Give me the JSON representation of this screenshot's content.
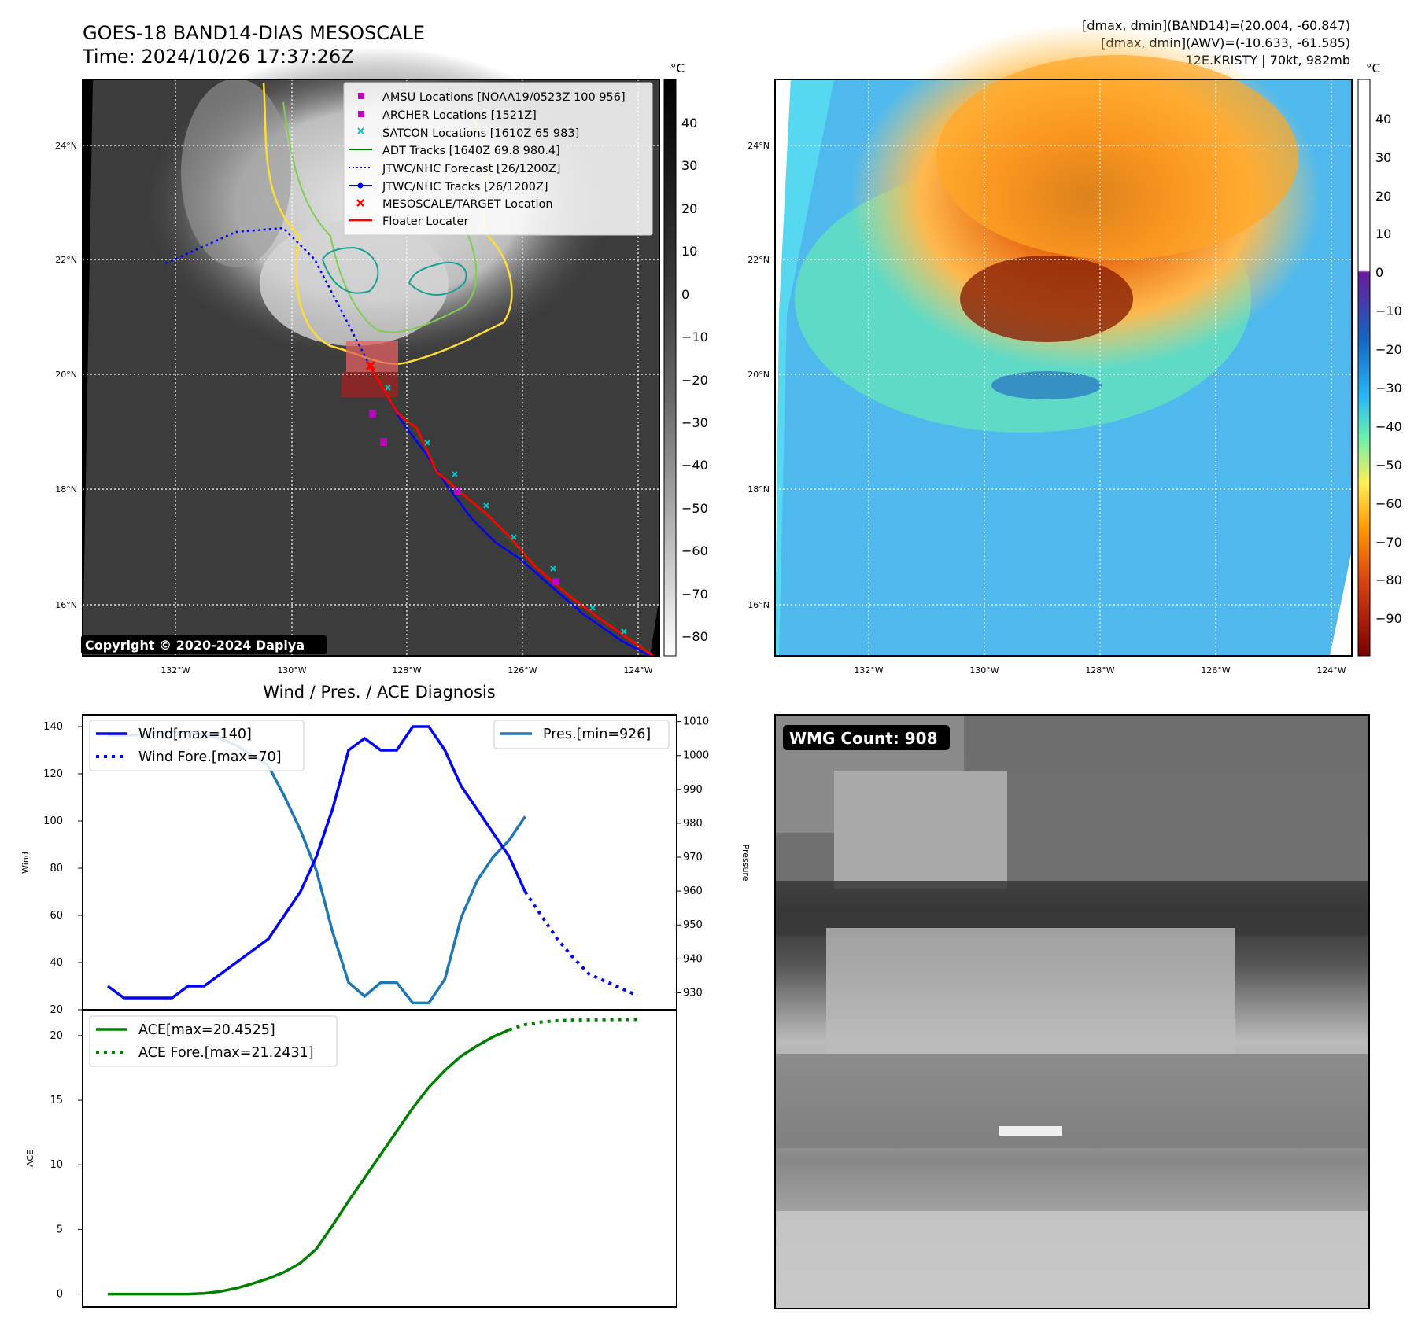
{
  "header": {
    "title": "GOES-18 BAND14-DIAS MESOSCALE",
    "time": "Time: 2024/10/26 17:37:26Z",
    "stats_line1": "[dmax, dmin](BAND14)=(20.004, -60.847)",
    "stats_line2": "[dmax, dmin](AWV)=(-10.633, -61.585)",
    "storm_line": "12E.KRISTY | 70kt, 982mb"
  },
  "map": {
    "lat_labels": [
      "24°N",
      "22°N",
      "20°N",
      "18°N",
      "16°N"
    ],
    "lon_labels": [
      "132°W",
      "130°W",
      "128°W",
      "126°W",
      "124°W"
    ],
    "copyright": "Copyright © 2020-2024 Dapiya",
    "unit": "°C"
  },
  "legend": {
    "items": [
      {
        "label": "AMSU Locations [NOAA19/0523Z 100 956]",
        "marker": "square",
        "color": "#c000c0"
      },
      {
        "label": "ARCHER Locations [1521Z]",
        "marker": "square",
        "color": "#c000c0"
      },
      {
        "label": "SATCON Locations [1610Z 65 983]",
        "marker": "x",
        "color": "#00c8c8"
      },
      {
        "label": "ADT Tracks [1640Z 69.8 980.4]",
        "marker": "line",
        "color": "#008000"
      },
      {
        "label": "JTWC/NHC Forecast [26/1200Z]",
        "marker": "dotted",
        "color": "#0000ff"
      },
      {
        "label": "JTWC/NHC Tracks [26/1200Z]",
        "marker": "line-dot",
        "color": "#0000ff"
      },
      {
        "label": "MESOSCALE/TARGET Location",
        "marker": "x",
        "color": "#ff0000"
      },
      {
        "label": "Floater Locater",
        "marker": "line",
        "color": "#ff0000"
      }
    ]
  },
  "colorbar_left": {
    "unit": "°C",
    "ticks": [
      "40",
      "30",
      "20",
      "10",
      "0",
      "−10",
      "−20",
      "−30",
      "−40",
      "−50",
      "−60",
      "−70",
      "−80"
    ]
  },
  "colorbar_right": {
    "unit": "°C",
    "ticks": [
      "40",
      "30",
      "20",
      "10",
      "0",
      "−10",
      "−20",
      "−30",
      "−40",
      "−50",
      "−60",
      "−70",
      "−80",
      "−90"
    ]
  },
  "wmg": {
    "label": "WMG Count: 908"
  },
  "chart_data": [
    {
      "type": "line",
      "title": "Wind / Pres. / ACE Diagnosis",
      "xlabel": "",
      "ylabel": "Wind",
      "y2label": "Pressure",
      "ylim": [
        20,
        145
      ],
      "y2lim": [
        925,
        1012
      ],
      "yticks": [
        "20",
        "40",
        "60",
        "80",
        "100",
        "120",
        "140"
      ],
      "y2ticks": [
        "930",
        "940",
        "950",
        "960",
        "970",
        "980",
        "990",
        "1000",
        "1010"
      ],
      "series": [
        {
          "name": "Wind[max=140]",
          "color": "#0000ff",
          "style": "solid",
          "values": [
            30,
            25,
            25,
            25,
            25,
            30,
            30,
            35,
            40,
            45,
            50,
            60,
            70,
            85,
            105,
            130,
            135,
            130,
            130,
            140,
            140,
            130,
            115,
            105,
            95,
            85,
            70
          ]
        },
        {
          "name": "Wind Fore.[max=70]",
          "color": "#0000ff",
          "style": "dotted",
          "x_start": 26,
          "values": [
            70,
            60,
            50,
            42,
            35,
            32,
            29,
            26
          ]
        },
        {
          "name": "Pres.[min=926]",
          "color": "#1f77b4",
          "style": "solid",
          "values": [
            1006,
            1006,
            1006,
            1007,
            1007,
            1007,
            1006,
            1005,
            1003,
            1000,
            997,
            988,
            978,
            966,
            948,
            933,
            929,
            933,
            933,
            927,
            927,
            934,
            952,
            963,
            970,
            975,
            982
          ]
        }
      ]
    },
    {
      "type": "line",
      "ylabel": "ACE",
      "ylim": [
        -1,
        22
      ],
      "yticks": [
        "0",
        "5",
        "10",
        "15",
        "20"
      ],
      "series": [
        {
          "name": "ACE[max=20.4525]",
          "color": "#008000",
          "style": "solid",
          "values": [
            0,
            0,
            0,
            0,
            0,
            0,
            0.05,
            0.2,
            0.45,
            0.8,
            1.2,
            1.7,
            2.4,
            3.5,
            5.3,
            7.2,
            9.0,
            10.8,
            12.6,
            14.4,
            16.0,
            17.3,
            18.4,
            19.2,
            19.9,
            20.45
          ]
        },
        {
          "name": "ACE Fore.[max=21.2431]",
          "color": "#008000",
          "style": "dotted",
          "x_start": 25,
          "values": [
            20.45,
            20.85,
            21.05,
            21.15,
            21.2,
            21.22,
            21.23,
            21.24,
            21.2431
          ]
        }
      ]
    }
  ]
}
